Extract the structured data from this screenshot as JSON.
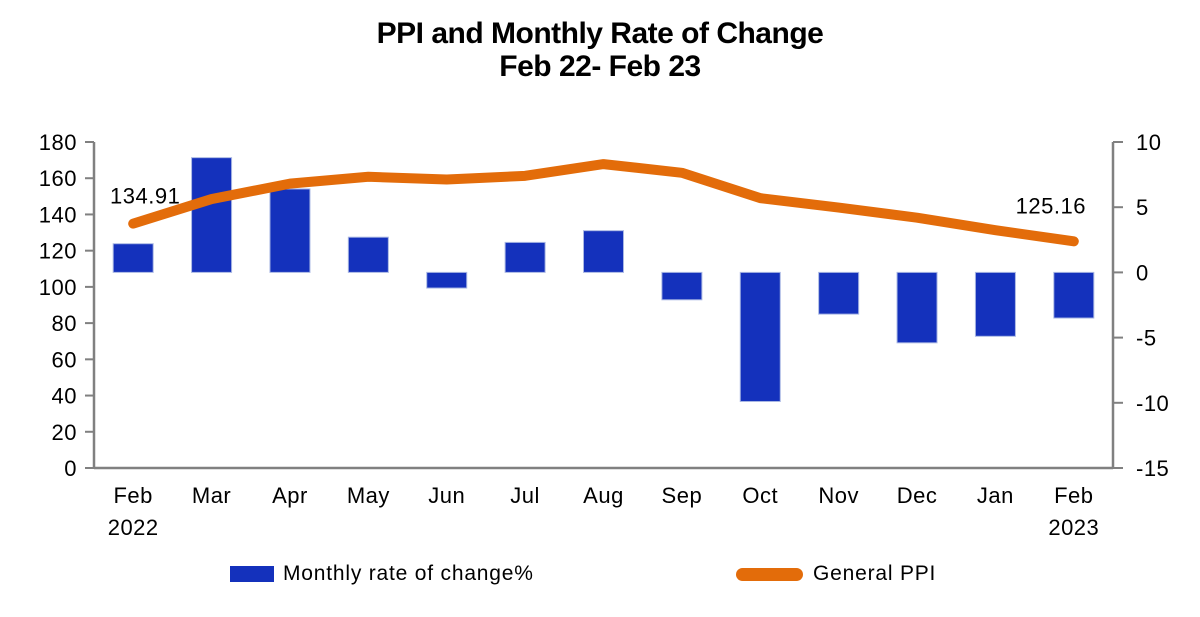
{
  "title": {
    "line1": "PPI and Monthly Rate of Change",
    "line2": "Feb 22- Feb 23"
  },
  "legend": {
    "bar_label": "Monthly rate of change%",
    "line_label": "General PPI"
  },
  "annotations": {
    "first_ppi_label": "134.91",
    "last_ppi_label": "125.16"
  },
  "colors": {
    "bar": "#1431BC",
    "bar_edge": "#A9B7E3",
    "line": "#E36C0A",
    "axis": "#808080",
    "text": "#000000",
    "background": "#FFFFFF"
  },
  "chart_data": {
    "type": "bar",
    "subtype": "bar-line combo, dual axis",
    "title": "PPI and Monthly Rate of Change Feb 22- Feb 23",
    "categories": [
      "Feb",
      "Mar",
      "Apr",
      "May",
      "Jun",
      "Jul",
      "Aug",
      "Sep",
      "Oct",
      "Nov",
      "Dec",
      "Jan",
      "Feb"
    ],
    "category_sublabels": {
      "0": "2022",
      "12": "2023"
    },
    "series": [
      {
        "name": "Monthly rate of change%",
        "type": "bar",
        "axis": "right",
        "values": [
          2.2,
          8.8,
          6.4,
          2.7,
          -1.2,
          2.3,
          3.2,
          -2.1,
          -9.9,
          -3.2,
          -5.4,
          -4.9,
          -3.5
        ]
      },
      {
        "name": "General PPI",
        "type": "line",
        "axis": "left",
        "values": [
          134.91,
          148.5,
          157.0,
          160.8,
          159.3,
          161.3,
          167.8,
          163.0,
          149.0,
          143.8,
          138.2,
          131.3,
          125.16
        ]
      }
    ],
    "left_axis": {
      "min": 0,
      "max": 180,
      "tick_step": 20,
      "ticks": [
        0,
        20,
        40,
        60,
        80,
        100,
        120,
        140,
        160,
        180
      ]
    },
    "right_axis": {
      "min": -15,
      "max": 10,
      "tick_step": 5,
      "ticks": [
        10,
        5,
        0,
        -5,
        -10,
        -15
      ]
    },
    "grid": false,
    "legend_position": "bottom",
    "data_labels": [
      {
        "series": "General PPI",
        "index": 0,
        "text": "134.91"
      },
      {
        "series": "General PPI",
        "index": 12,
        "text": "125.16"
      }
    ]
  }
}
